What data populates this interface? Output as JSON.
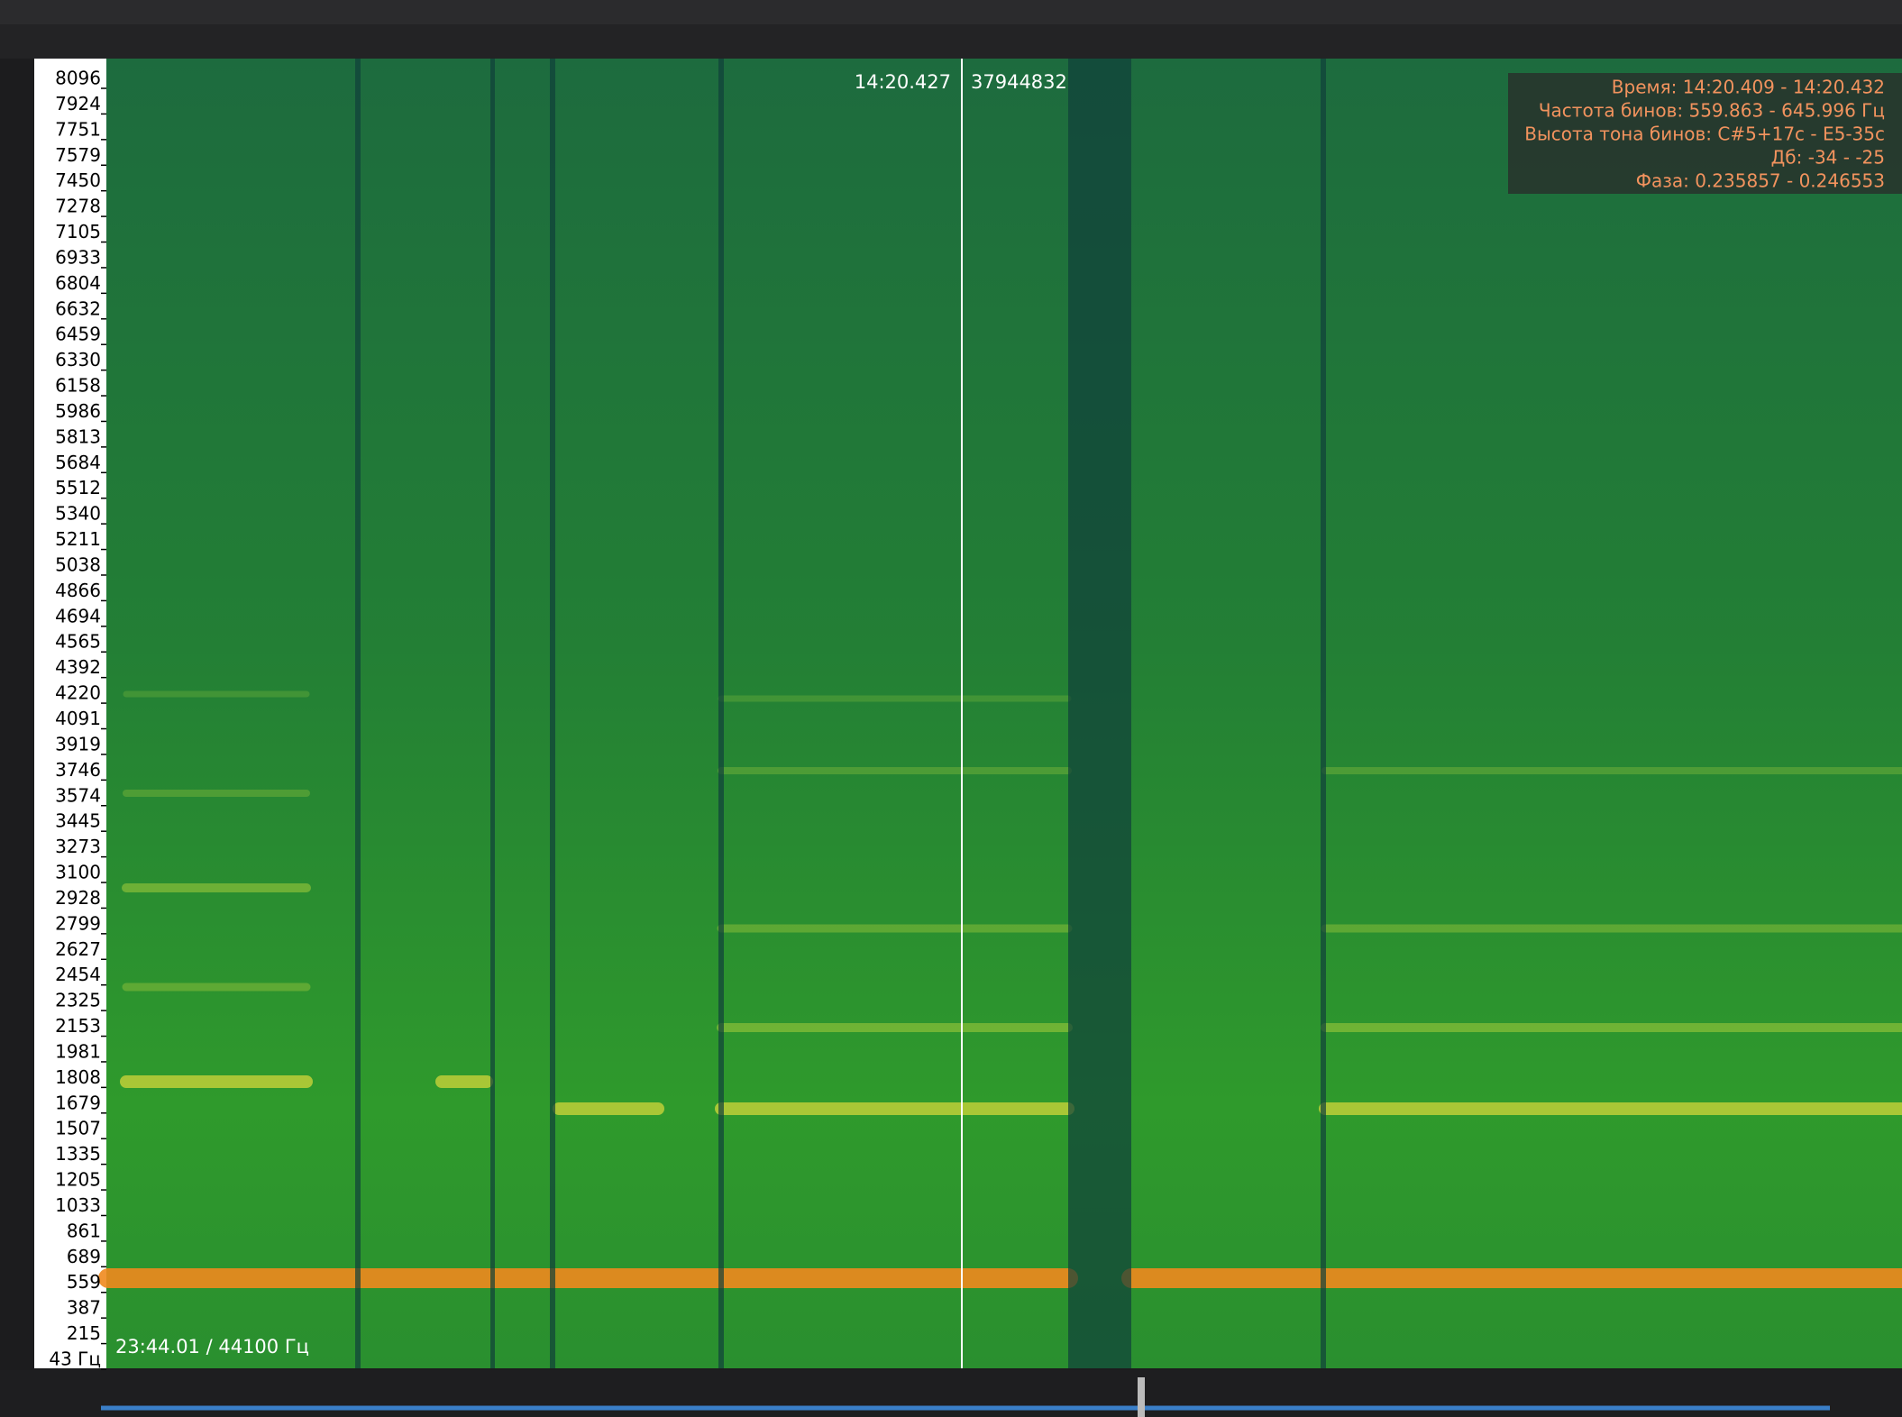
{
  "axis": {
    "labels": [
      "8096",
      "7924",
      "7751",
      "7579",
      "7450",
      "7278",
      "7105",
      "6933",
      "6804",
      "6632",
      "6459",
      "6330",
      "6158",
      "5986",
      "5813",
      "5684",
      "5512",
      "5340",
      "5211",
      "5038",
      "4866",
      "4694",
      "4565",
      "4392",
      "4220",
      "4091",
      "3919",
      "3746",
      "3574",
      "3445",
      "3273",
      "3100",
      "2928",
      "2799",
      "2627",
      "2454",
      "2325",
      "2153",
      "1981",
      "1808",
      "1679",
      "1507",
      "1335",
      "1205",
      "1033",
      "861",
      "689",
      "559",
      "387",
      "215",
      "43 Гц"
    ]
  },
  "cursor": {
    "time": "14:20.427",
    "sample": "37944832"
  },
  "info": {
    "lines": [
      "Время: 14:20.409 - 14:20.432",
      "Частота бинов: 559.863 - 645.996 Гц",
      "Высота тона бинов: C#5+17c - E5-35c",
      "Дб: -34 - -25",
      "Фаза: 0.235857 - 0.246553"
    ]
  },
  "status": {
    "duration": "23:44.01 / 44100 Гц"
  }
}
